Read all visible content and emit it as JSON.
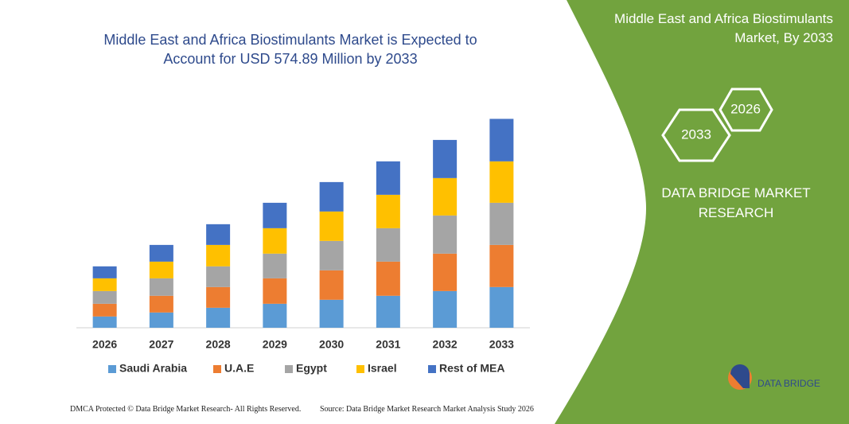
{
  "chart_data": {
    "type": "stacked_bar",
    "title": "Middle East and Africa Biostimulants Market is Expected to Account for USD 574.89 Million by 2033",
    "categories": [
      "2026",
      "2027",
      "2028",
      "2029",
      "2030",
      "2031",
      "2032",
      "2033"
    ],
    "series": [
      {
        "name": "Saudi Arabia",
        "color": "#5b9bd5",
        "values": [
          31,
          42,
          55,
          66,
          77,
          88,
          101,
          112
        ]
      },
      {
        "name": "U.A.E",
        "color": "#ed7d31",
        "values": [
          35,
          46,
          57,
          70,
          81,
          94,
          103,
          116
        ]
      },
      {
        "name": "Egypt",
        "color": "#a5a5a5",
        "values": [
          35,
          48,
          57,
          68,
          81,
          92,
          105,
          116
        ]
      },
      {
        "name": "Israel",
        "color": "#ffc000",
        "values": [
          35,
          46,
          59,
          70,
          81,
          92,
          103,
          114
        ]
      },
      {
        "name": "Rest of MEA",
        "color": "#4472c4",
        "values": [
          33,
          46,
          57,
          70,
          81,
          92,
          105,
          117
        ]
      }
    ],
    "ylim": [
      0,
      600
    ],
    "legend": "bottom"
  },
  "panel": {
    "title": "Middle East and Africa Biostimulants Market, By 2033",
    "hex_front": "2033",
    "hex_back": "2026",
    "brand": "DATA BRIDGE MARKET RESEARCH",
    "logo": "DATA BRIDGE"
  },
  "footer": {
    "left": "DMCA Protected © Data Bridge Market Research- All Rights Reserved.",
    "right": "Source: Data Bridge Market Research Market Analysis Study 2026"
  }
}
